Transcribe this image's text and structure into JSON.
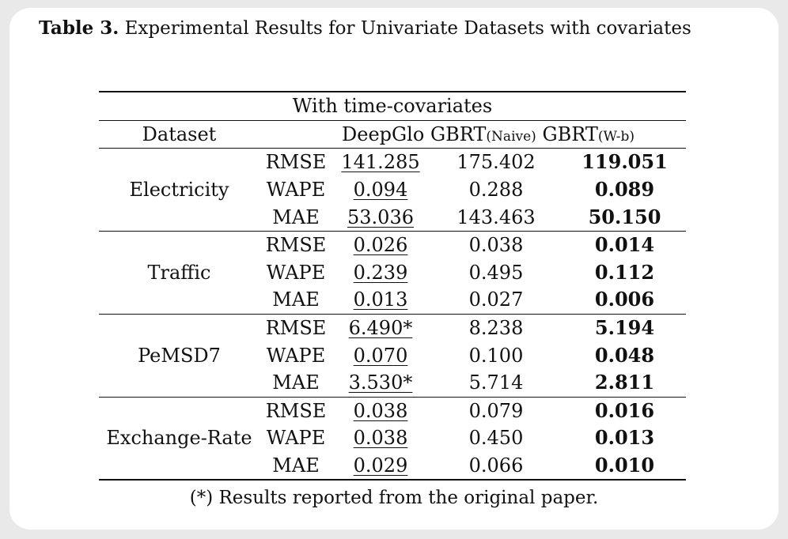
{
  "caption": {
    "label": "Table 3.",
    "text": "Experimental Results for Univariate Datasets with covariates"
  },
  "table": {
    "section_title": "With time-covariates",
    "headers": {
      "dataset": "Dataset",
      "deepglo": "DeepGlo",
      "gbrt_naive_main": "GBRT",
      "gbrt_naive_sub": "(Naive)",
      "gbrt_wb_main": "GBRT",
      "gbrt_wb_sub": "(W-b)"
    },
    "groups": [
      {
        "dataset": "Electricity",
        "rows": [
          {
            "metric": "RMSE",
            "deepglo": "141.285",
            "naive": "175.402",
            "wb": "119.051"
          },
          {
            "metric": "WAPE",
            "deepglo": "0.094",
            "naive": "0.288",
            "wb": "0.089"
          },
          {
            "metric": "MAE",
            "deepglo": "53.036",
            "naive": "143.463",
            "wb": "50.150"
          }
        ]
      },
      {
        "dataset": "Traffic",
        "rows": [
          {
            "metric": "RMSE",
            "deepglo": "0.026",
            "naive": "0.038",
            "wb": "0.014"
          },
          {
            "metric": "WAPE",
            "deepglo": "0.239",
            "naive": "0.495",
            "wb": "0.112"
          },
          {
            "metric": "MAE",
            "deepglo": "0.013",
            "naive": "0.027",
            "wb": "0.006"
          }
        ]
      },
      {
        "dataset": "PeMSD7",
        "rows": [
          {
            "metric": "RMSE",
            "deepglo": "6.490*",
            "naive": "8.238",
            "wb": "5.194"
          },
          {
            "metric": "WAPE",
            "deepglo": "0.070",
            "naive": "0.100",
            "wb": "0.048"
          },
          {
            "metric": "MAE",
            "deepglo": "3.530*",
            "naive": "5.714",
            "wb": "2.811"
          }
        ]
      },
      {
        "dataset": "Exchange-Rate",
        "rows": [
          {
            "metric": "RMSE",
            "deepglo": "0.038",
            "naive": "0.079",
            "wb": "0.016"
          },
          {
            "metric": "WAPE",
            "deepglo": "0.038",
            "naive": "0.450",
            "wb": "0.013"
          },
          {
            "metric": "MAE",
            "deepglo": "0.029",
            "naive": "0.066",
            "wb": "0.010"
          }
        ]
      }
    ],
    "footnote": "(*) Results reported from the original paper."
  }
}
